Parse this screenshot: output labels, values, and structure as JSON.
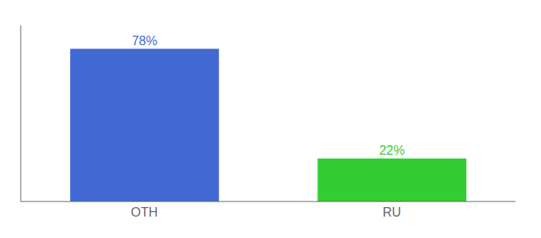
{
  "chart_data": {
    "type": "bar",
    "categories": [
      "OTH",
      "RU"
    ],
    "values": [
      78,
      22
    ],
    "value_labels": [
      "78%",
      "22%"
    ],
    "colors": [
      "#4169d4",
      "#33cc33"
    ],
    "ylim": [
      0,
      90
    ],
    "data_labels": true,
    "tick_labels": "x",
    "grid": false
  }
}
